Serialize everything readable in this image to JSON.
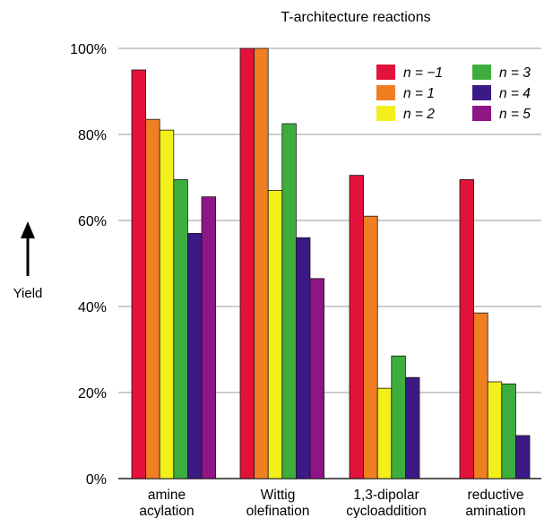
{
  "chart_data": {
    "type": "bar",
    "title": "T-architecture reactions",
    "ylabel": "Yield",
    "xlabel": "",
    "ylim": [
      0,
      100
    ],
    "yticks": [
      0,
      20,
      40,
      60,
      80,
      100
    ],
    "ytick_labels": [
      "0%",
      "20%",
      "40%",
      "60%",
      "80%",
      "100%"
    ],
    "grid": true,
    "legend_position": "top-right",
    "categories": [
      [
        "amine",
        "acylation"
      ],
      [
        "Wittig",
        "olefination"
      ],
      [
        "1,3-dipolar",
        "cycloaddition"
      ],
      [
        "reductive",
        "amination"
      ]
    ],
    "series": [
      {
        "name": "n = −1",
        "color": "#e3123a",
        "values": [
          95,
          100,
          70.5,
          69.5
        ]
      },
      {
        "name": "n = 1",
        "color": "#f07f22",
        "values": [
          83.5,
          100,
          61,
          38.5
        ]
      },
      {
        "name": "n = 2",
        "color": "#f3ef1b",
        "values": [
          81,
          67,
          21,
          22.5
        ]
      },
      {
        "name": "n = 3",
        "color": "#3dae3d",
        "values": [
          69.5,
          82.5,
          28.5,
          22
        ]
      },
      {
        "name": "n = 4",
        "color": "#3b1a86",
        "values": [
          57,
          56,
          23.5,
          10
        ]
      },
      {
        "name": "n = 5",
        "color": "#8e1585",
        "values": [
          65.5,
          46.5,
          null,
          null
        ]
      }
    ]
  }
}
